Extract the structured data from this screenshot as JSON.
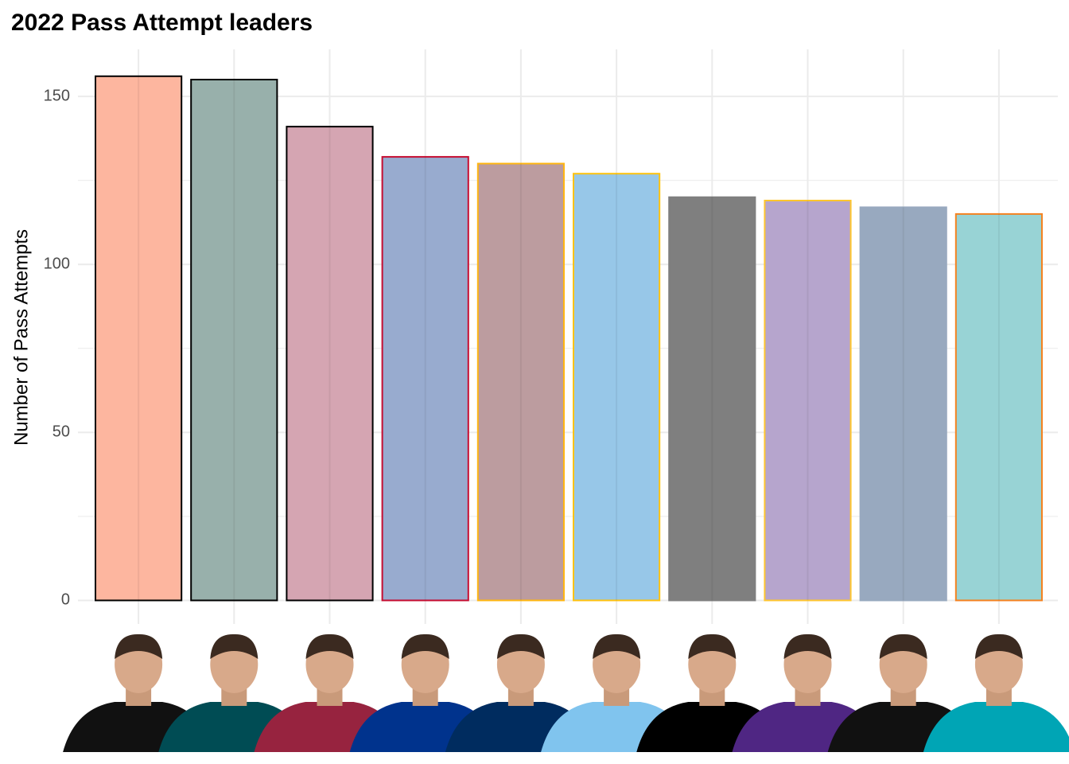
{
  "chart_data": {
    "type": "bar",
    "title": "2022 Pass Attempt leaders",
    "ylabel": "Number of Pass Attempts",
    "categories": [
      null,
      null,
      null,
      null,
      null,
      null,
      null,
      null,
      null,
      null
    ],
    "values": [
      156,
      155,
      141,
      132,
      130,
      127,
      120,
      119,
      117,
      115
    ],
    "colors": [
      "#fdb69f",
      "#98b0ab",
      "#d5a5b2",
      "#98abcf",
      "#bc9c9f",
      "#97c7e8",
      "#7f7f7f",
      "#b6a5cd",
      "#98a9bf",
      "#98d3d5"
    ],
    "edge_colors": [
      "#000000",
      "#000000",
      "#000000",
      "#c60c30",
      "#ffb612",
      "#ffc20e",
      "#7f7f7f",
      "#ffc62f",
      "#98a9bf",
      "#f58220"
    ],
    "ylim": [
      -7,
      164
    ],
    "yticks": [
      0,
      50,
      100,
      150
    ],
    "minor_yticks": [
      25,
      75,
      125
    ],
    "grid": true
  }
}
